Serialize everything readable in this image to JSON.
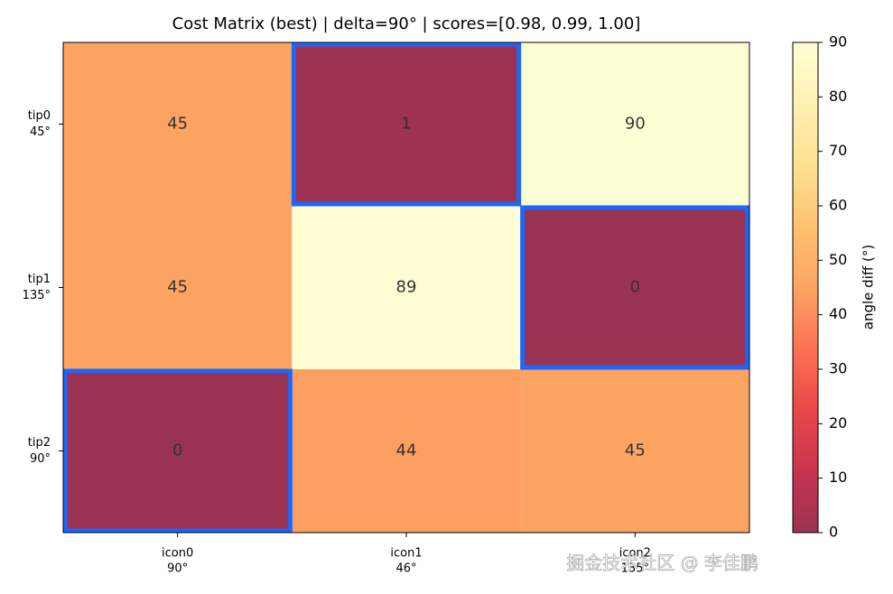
{
  "chart_data": {
    "type": "heatmap",
    "title": "Cost Matrix (best) | delta=90° | scores=[0.98, 0.99, 1.00]",
    "x_categories": [
      [
        "icon0",
        "90°"
      ],
      [
        "icon1",
        "46°"
      ],
      [
        "icon2",
        "135°"
      ]
    ],
    "y_categories": [
      [
        "tip0",
        "45°"
      ],
      [
        "tip1",
        "135°"
      ],
      [
        "tip2",
        "90°"
      ]
    ],
    "values": [
      [
        45,
        1,
        90
      ],
      [
        45,
        89,
        0
      ],
      [
        0,
        44,
        45
      ]
    ],
    "colormap": [
      "#800026",
      "#bd0026",
      "#e31a1c",
      "#fc4e2a",
      "#fd8d3c",
      "#feb24c",
      "#fed976",
      "#ffeda0",
      "#ffffcc"
    ],
    "cell_opacity": 0.8,
    "highlight": [
      [
        0,
        1
      ],
      [
        1,
        2
      ],
      [
        2,
        0
      ]
    ],
    "highlight_color": "#1a66ff",
    "colorbar_label": "angle diff (°)",
    "ylim": [
      0,
      90
    ],
    "yticks": [
      0,
      10,
      20,
      30,
      40,
      50,
      60,
      70,
      80,
      90
    ],
    "watermark": "掘金技术社区 @ 李佳鹏"
  }
}
